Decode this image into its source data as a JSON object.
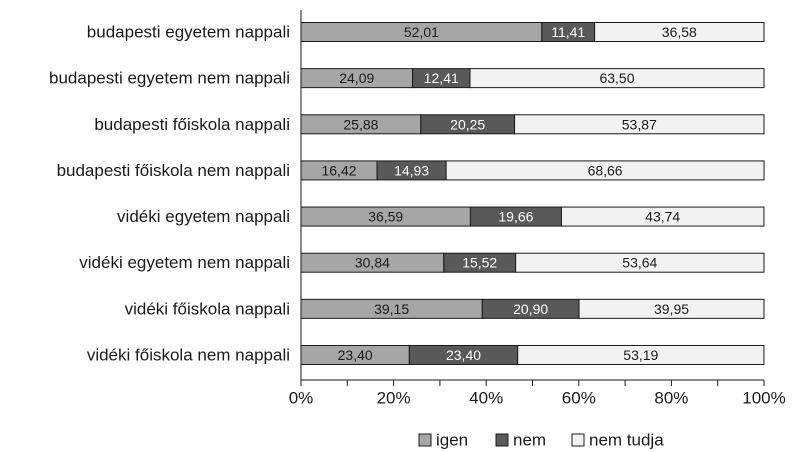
{
  "chart_data": {
    "type": "bar",
    "orientation": "horizontal",
    "stacked": true,
    "percent": true,
    "title": "",
    "xlabel": "",
    "ylabel": "",
    "xlim": [
      0,
      100
    ],
    "x_ticks": [
      "0%",
      "20%",
      "40%",
      "60%",
      "80%",
      "100%"
    ],
    "grid": false,
    "legend_position": "bottom",
    "categories": [
      "budapesti egyetem nappali",
      "budapesti egyetem nem nappali",
      "budapesti főiskola nappali",
      "budapesti főiskola nem nappali",
      "vidéki egyetem nappali",
      "vidéki egyetem nem nappali",
      "vidéki főiskola nappali",
      "vidéki főiskola nem nappali"
    ],
    "series": [
      {
        "name": "igen",
        "color": "#a6a6a6",
        "label_color": "#1a1a1a",
        "values": [
          52.01,
          24.09,
          25.88,
          16.42,
          36.59,
          30.84,
          39.15,
          23.4
        ],
        "labels": [
          "52,01",
          "24,09",
          "25,88",
          "16,42",
          "36,59",
          "30,84",
          "39,15",
          "23,40"
        ]
      },
      {
        "name": "nem",
        "color": "#595959",
        "label_color": "#ffffff",
        "values": [
          11.41,
          12.41,
          20.25,
          14.93,
          19.66,
          15.52,
          20.9,
          23.4
        ],
        "labels": [
          "11,41",
          "12,41",
          "20,25",
          "14,93",
          "19,66",
          "15,52",
          "20,90",
          "23,40"
        ]
      },
      {
        "name": "nem tudja",
        "color": "#f2f2f2",
        "label_color": "#1a1a1a",
        "values": [
          36.58,
          63.5,
          53.87,
          68.66,
          43.74,
          53.64,
          39.95,
          53.19
        ],
        "labels": [
          "36,58",
          "63,50",
          "53,87",
          "68,66",
          "43,74",
          "53,64",
          "39,95",
          "53,19"
        ]
      }
    ]
  }
}
